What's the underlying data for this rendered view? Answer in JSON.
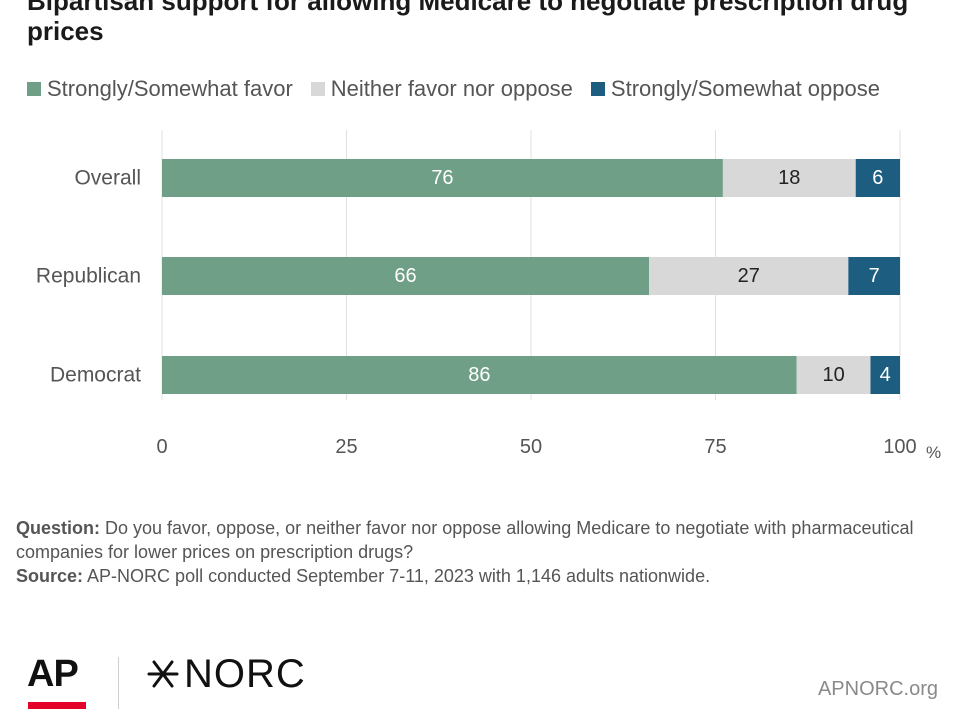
{
  "chart_data": {
    "type": "bar",
    "orientation": "horizontal",
    "stacked": true,
    "title": "Bipartisan support for allowing Medicare to negotiate prescription drug prices",
    "categories": [
      "Overall",
      "Republican",
      "Democrat"
    ],
    "series": [
      {
        "name": "Strongly/Somewhat favor",
        "color": "#6f9f86",
        "label_color": "#ffffff",
        "values": [
          76,
          66,
          86
        ]
      },
      {
        "name": "Neither favor nor oppose",
        "color": "#d8d8d8",
        "label_color": "#222222",
        "values": [
          18,
          27,
          10
        ]
      },
      {
        "name": "Strongly/Somewhat oppose",
        "color": "#1d5e80",
        "label_color": "#ffffff",
        "values": [
          6,
          7,
          4
        ]
      }
    ],
    "xlim": [
      0,
      100
    ],
    "xticks": [
      0,
      25,
      50,
      75,
      100
    ],
    "x_unit": "%",
    "grid": true,
    "legend_position": "top-left"
  },
  "notes": {
    "question_label": "Question:",
    "question_text": "Do you favor, oppose, or neither favor nor oppose allowing Medicare to negotiate with pharmaceutical companies for lower prices on prescription drugs?",
    "source_label": "Source:",
    "source_text": "AP-NORC poll conducted September 7-11, 2023 with 1,146 adults nationwide."
  },
  "footer": {
    "ap_logo_text": "AP",
    "norc_logo_text": "NORC",
    "website": "APNORC.org",
    "ap_accent": "#e4002b"
  }
}
